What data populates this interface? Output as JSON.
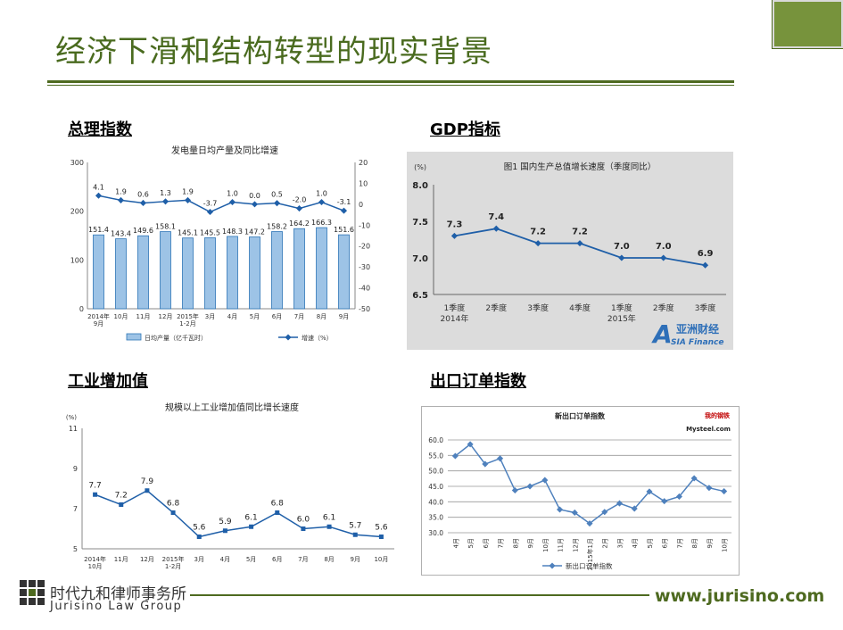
{
  "page": {
    "title": "经济下滑和结构转型的现实背景",
    "footer_cn": "时代九和律师事务所",
    "footer_en": "Jurisino Law Group",
    "footer_url": "www.jurisino.com",
    "accent": "#4e6a20"
  },
  "sections": {
    "pmi": "总理指数",
    "gdp": "GDP指标",
    "industry": "工业增加值",
    "export": "出口订单指数"
  },
  "chart_data": [
    {
      "type": "bar",
      "title": "发电量日均产量及同比增速",
      "categories": [
        "2014年\n9月",
        "10月",
        "11月",
        "12月",
        "2015年\n1-2月",
        "3月",
        "4月",
        "5月",
        "6月",
        "7月",
        "8月",
        "9月"
      ],
      "series": [
        {
          "name": "日均产量（亿千瓦时）",
          "type": "bar",
          "axis": "left",
          "values": [
            151.4,
            143.4,
            149.6,
            158.1,
            145.1,
            145.5,
            148.3,
            147.2,
            158.2,
            164.2,
            166.3,
            151.6
          ]
        },
        {
          "name": "增速（%）",
          "type": "line",
          "axis": "right",
          "values": [
            4.1,
            1.9,
            0.6,
            1.3,
            1.9,
            -3.7,
            1.0,
            0.0,
            0.5,
            -2.0,
            1.0,
            -3.1
          ]
        }
      ],
      "ylim_left": [
        0,
        300
      ],
      "yticks_left": [
        0,
        100,
        200,
        300
      ],
      "ylim_right": [
        -50,
        20
      ],
      "yticks_right": [
        20,
        10,
        0,
        -10,
        -20,
        -30,
        -40,
        -50
      ],
      "colors": {
        "bar": "#9dc3e6",
        "bar_edge": "#2e75b6",
        "line": "#1f5fa8"
      },
      "legend": "bottom"
    },
    {
      "type": "line",
      "title": "图1  国内生产总值增长速度（季度同比）",
      "ylabel": "(%)",
      "categories": [
        "1季度\n2014年",
        "2季度",
        "3季度",
        "4季度",
        "1季度\n2015年",
        "2季度",
        "3季度"
      ],
      "values": [
        7.3,
        7.4,
        7.2,
        7.2,
        7.0,
        7.0,
        6.9
      ],
      "ylim": [
        6.5,
        8.0
      ],
      "yticks": [
        8.0,
        7.5,
        7.0,
        6.5
      ],
      "colors": {
        "line": "#1f5fa8",
        "background": "#dcdcdc"
      },
      "watermark": {
        "main": "亚洲财经",
        "sub": "SIA Finance",
        "letter": "A"
      }
    },
    {
      "type": "line",
      "title": "规模以上工业增加值同比增长速度",
      "ylabel": "(%)",
      "categories": [
        "2014年\n10月",
        "11月",
        "12月",
        "2015年\n1-2月",
        "3月",
        "4月",
        "5月",
        "6月",
        "7月",
        "8月",
        "9月",
        "10月"
      ],
      "values": [
        7.7,
        7.2,
        7.9,
        6.8,
        5.6,
        5.9,
        6.1,
        6.8,
        6.0,
        6.1,
        5.7,
        5.6
      ],
      "ylim": [
        5,
        11
      ],
      "yticks": [
        11,
        9,
        7,
        5
      ],
      "colors": {
        "line": "#1f5fa8"
      }
    },
    {
      "type": "line",
      "title": "新出口订单指数",
      "categories": [
        "4月",
        "5月",
        "6月",
        "7月",
        "8月",
        "9月",
        "10月",
        "11月",
        "12月",
        "2015年1月",
        "2月",
        "3月",
        "4月",
        "5月",
        "6月",
        "7月",
        "8月",
        "9月",
        "10月"
      ],
      "values": [
        54.8,
        58.6,
        52.2,
        54.0,
        43.7,
        45.0,
        47.0,
        37.5,
        36.5,
        33.0,
        36.7,
        39.5,
        37.8,
        43.3,
        40.2,
        41.7,
        47.6,
        44.5,
        43.4
      ],
      "series_name": "新出口订单指数",
      "ylim": [
        30,
        60
      ],
      "yticks": [
        "60.0",
        "55.0",
        "50.0",
        "45.0",
        "40.0",
        "35.0",
        "30.0"
      ],
      "colors": {
        "line": "#4f81bd",
        "frame": "#b0b0b0"
      },
      "legend": "bottom",
      "watermark": {
        "top": "我的钢铁",
        "bottom": "Mysteel.com"
      }
    }
  ]
}
